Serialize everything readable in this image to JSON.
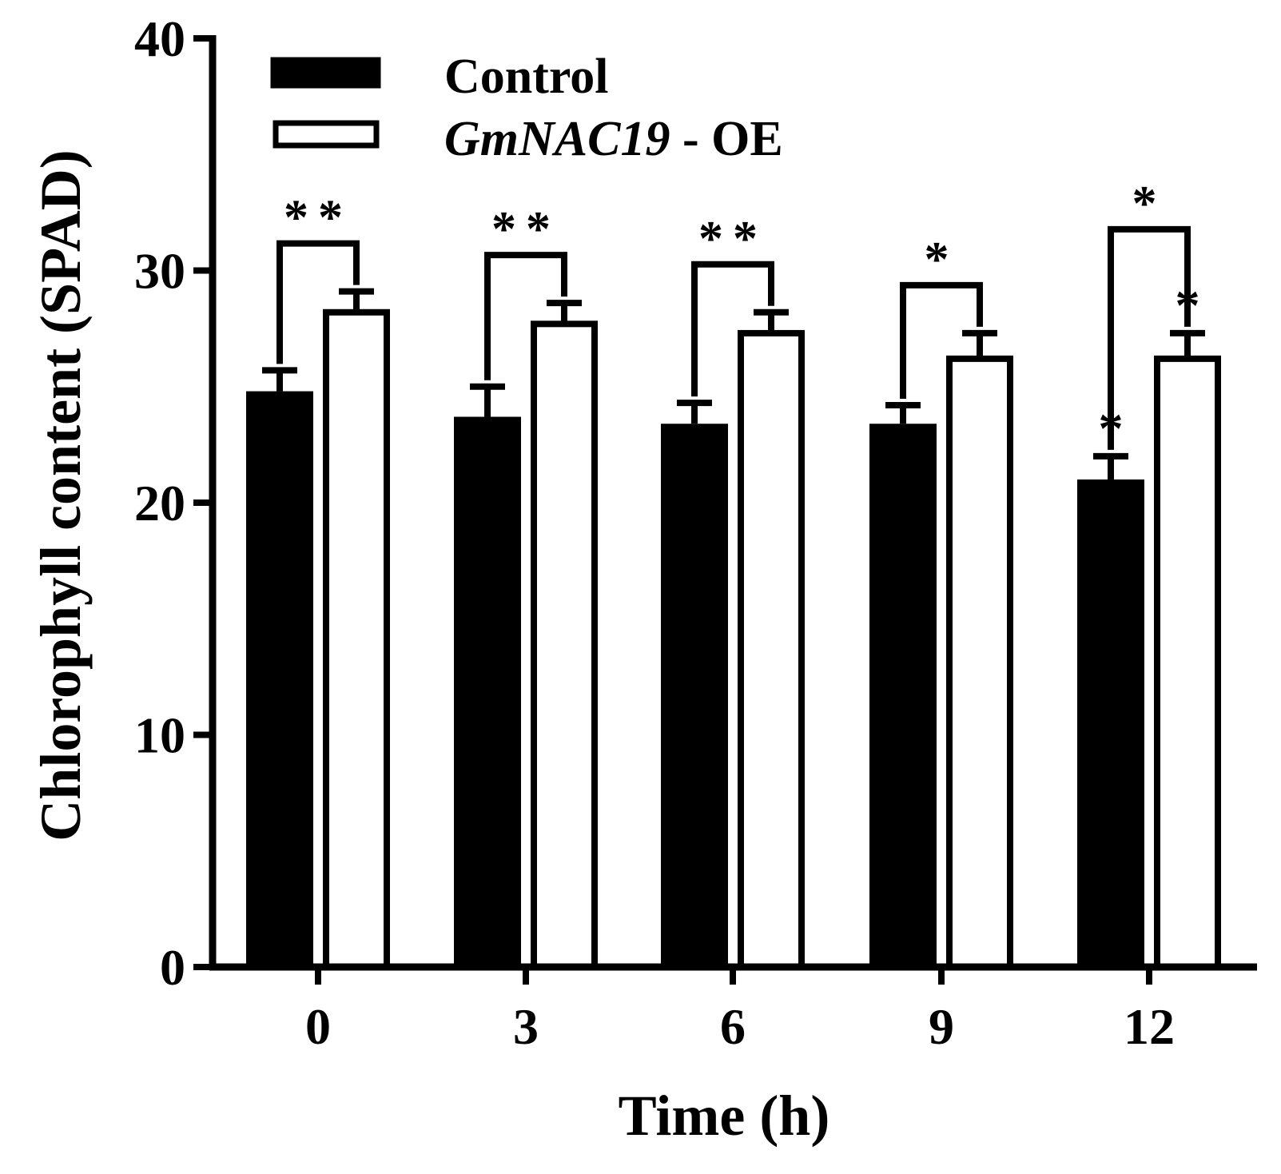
{
  "chart_data": {
    "type": "bar",
    "title": "",
    "xlabel": "Time (h)",
    "ylabel": "Chlorophyll content (SPAD)",
    "ylim": [
      0,
      40
    ],
    "yticks": [
      "0",
      "10",
      "20",
      "30",
      "40"
    ],
    "categories": [
      "0",
      "3",
      "6",
      "9",
      "12"
    ],
    "series": [
      {
        "name": "Control",
        "fill": "#000000",
        "values": [
          24.8,
          23.7,
          23.4,
          23.4,
          21.0
        ],
        "errors": [
          0.9,
          1.3,
          0.9,
          0.8,
          1.0
        ],
        "bar_marks": [
          "",
          "",
          "",
          "",
          "*"
        ]
      },
      {
        "name": "GmNAC19 - OE",
        "name_italic": "GmNAC19",
        "name_plain": " - OE",
        "fill": "#ffffff",
        "values": [
          28.2,
          27.7,
          27.3,
          26.2,
          26.2
        ],
        "errors": [
          0.9,
          0.9,
          0.9,
          1.1,
          1.1
        ],
        "bar_marks": [
          "",
          "",
          "",
          "",
          "*"
        ]
      }
    ],
    "comparison_marks": [
      "**",
      "**",
      "**",
      "*",
      "*"
    ],
    "legend_position": "top-left",
    "grid": false
  }
}
